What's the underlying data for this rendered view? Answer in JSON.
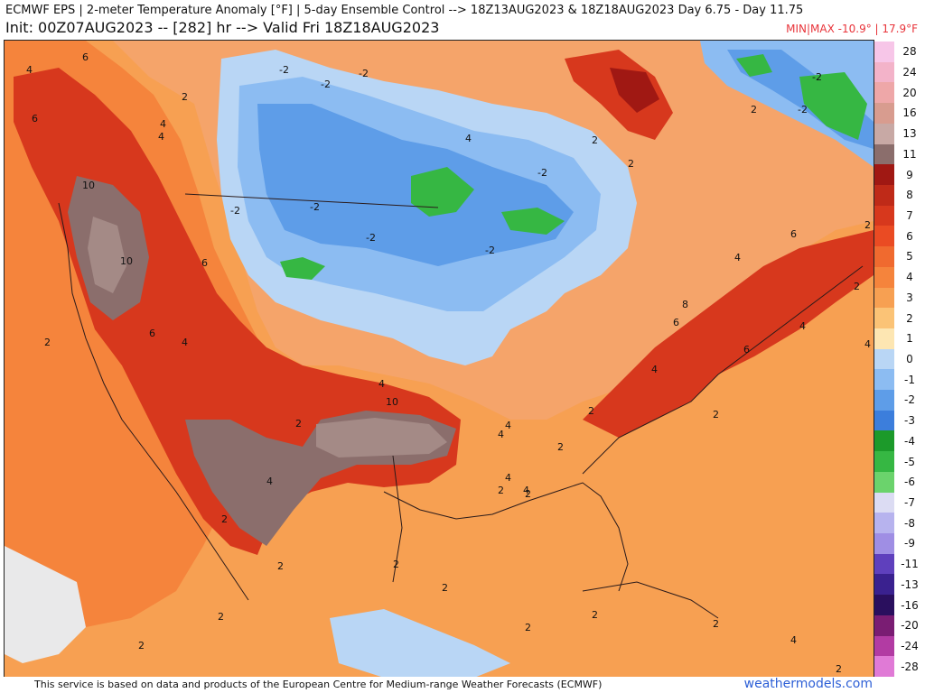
{
  "header": {
    "title_line1": "ECMWF EPS | 2-meter Temperature Anomaly [°F] | 5-day Ensemble Control --> 18Z13AUG2023 & 18Z18AUG2023   Day 6.75 - Day 11.75",
    "title_line2": "Init: 00Z07AUG2023 -- [282] hr --> Valid Fri 18Z18AUG2023",
    "minmax": "MIN|MAX -10.9° | 17.9°F"
  },
  "colorbar": {
    "labels": [
      "28",
      "24",
      "20",
      "16",
      "13",
      "11",
      "9",
      "8",
      "7",
      "6",
      "5",
      "4",
      "3",
      "2",
      "1",
      "0",
      "-1",
      "-2",
      "-3",
      "-4",
      "-5",
      "-6",
      "-7",
      "-8",
      "-9",
      "-11",
      "-13",
      "-16",
      "-20",
      "-24",
      "-28"
    ],
    "colors": [
      "#f7c6e8",
      "#f3b3c9",
      "#eea7a8",
      "#d89c8f",
      "#c8a9a5",
      "#a48a86",
      "#8b6e6c",
      "#a01813",
      "#bf2a18",
      "#d7381d",
      "#ea4b23",
      "#f06a2f",
      "#f5843c",
      "#f7a052",
      "#fbc376",
      "#fde6b2",
      "#e9e9ea",
      "#b9d6f5",
      "#8cbcf2",
      "#5e9de8",
      "#3c7edc",
      "#1c9a2a",
      "#36b743",
      "#6bd36c",
      "#dcdcf3",
      "#b7b3ee",
      "#9f8ee4",
      "#7f68d4",
      "#5f40bd",
      "#3a218f",
      "#2a0f5e",
      "#7a1d73",
      "#b23ba3",
      "#e07ad6"
    ]
  },
  "map": {
    "contour_labels": [
      "6",
      "4",
      "4",
      "2",
      "6",
      "4",
      "10",
      "10",
      "6",
      "6",
      "4",
      "2",
      "-2",
      "-2",
      "-2",
      "-2",
      "-2",
      "4",
      "-2",
      "-2",
      "-2",
      "2",
      "2",
      "-2",
      "-2",
      "2",
      "4",
      "6",
      "2",
      "2",
      "4",
      "6",
      "8",
      "6",
      "2",
      "4",
      "10",
      "4",
      "2",
      "4",
      "4",
      "2",
      "2",
      "4",
      "4",
      "2",
      "2",
      "2",
      "2",
      "2",
      "2",
      "2",
      "2",
      "2",
      "2",
      "2",
      "4",
      "4",
      "4",
      "2"
    ],
    "legend_steps": 31
  },
  "footer": {
    "credit": "This service is based on data and products of the European Centre for Medium-range Weather Forecasts (ECMWF)",
    "site": "weathermodels.com"
  }
}
